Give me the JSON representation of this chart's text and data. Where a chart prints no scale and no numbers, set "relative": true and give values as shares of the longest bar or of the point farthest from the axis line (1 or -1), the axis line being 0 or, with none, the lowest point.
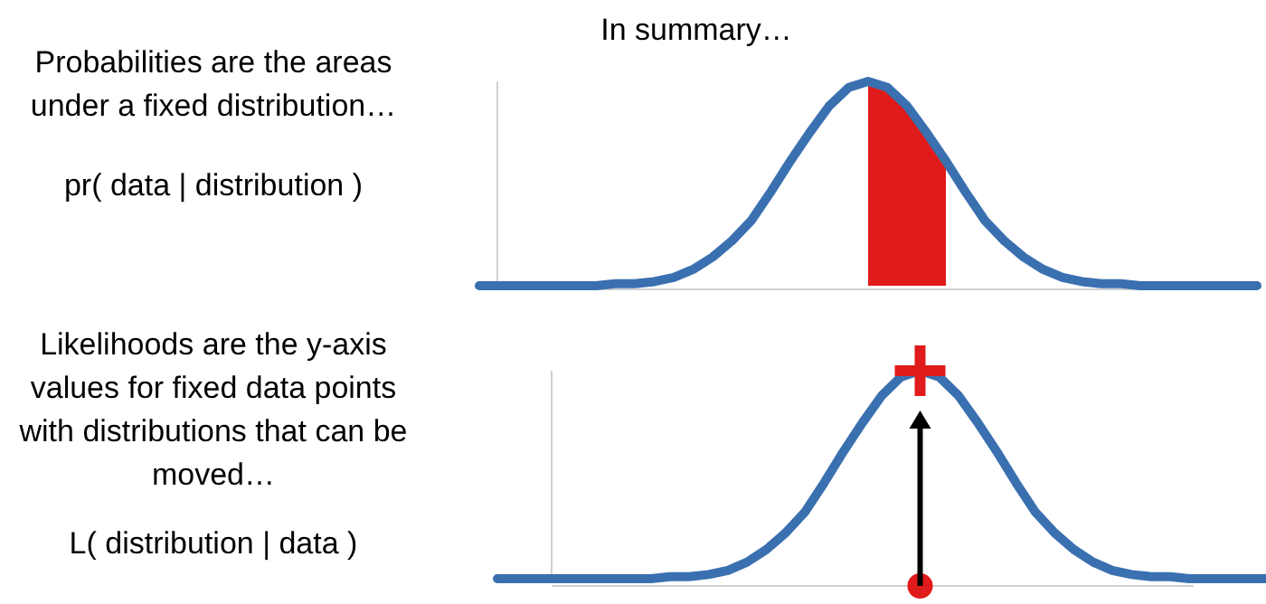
{
  "chart_data": [
    {
      "type": "line",
      "title": "In summary…",
      "relative": true,
      "annotations": [
        "Probabilities are the areas\nunder a fixed distribution…",
        "pr( data | distribution )"
      ],
      "categories": [
        null,
        null,
        null,
        null,
        null,
        null,
        null,
        null,
        null,
        null,
        null,
        null,
        null,
        null,
        null,
        null,
        null,
        null,
        null,
        null,
        null,
        null,
        null,
        null,
        null,
        null,
        null,
        null,
        null,
        null,
        null,
        null,
        null,
        null,
        null,
        null,
        null,
        null,
        null,
        null,
        null
      ],
      "series": [
        {
          "type": "area",
          "color": "#e01b1b",
          "values": [
            null,
            null,
            null,
            null,
            null,
            null,
            null,
            null,
            null,
            null,
            null,
            null,
            null,
            null,
            null,
            null,
            null,
            null,
            null,
            null,
            1,
            0.97,
            0.88,
            0.75,
            0.61,
            null,
            null,
            null,
            null,
            null,
            null,
            null,
            null,
            null,
            null,
            null,
            null,
            null,
            null,
            null,
            null
          ]
        },
        {
          "color": "#3a70b0",
          "values": [
            0,
            0,
            0,
            0,
            0,
            0,
            0,
            0.01,
            0.01,
            0.02,
            0.04,
            0.08,
            0.14,
            0.22,
            0.32,
            0.46,
            0.61,
            0.75,
            0.88,
            0.97,
            1,
            0.97,
            0.88,
            0.75,
            0.61,
            0.46,
            0.32,
            0.22,
            0.14,
            0.08,
            0.04,
            0.02,
            0.01,
            0.01,
            0,
            0,
            0,
            0,
            0,
            0,
            0
          ]
        }
      ]
    },
    {
      "type": "line",
      "relative": true,
      "annotations": [
        "Likelihoods are the y-axis\nvalues for fixed data points\nwith distributions that can be\nmoved…",
        "L( distribution | data )"
      ],
      "categories": [
        null,
        null,
        null,
        null,
        null,
        null,
        null,
        null,
        null,
        null,
        null,
        null,
        null,
        null,
        null,
        null,
        null,
        null,
        null,
        null,
        null,
        null,
        null,
        null,
        null,
        null,
        null,
        null,
        null,
        null,
        null,
        null,
        null,
        null,
        null,
        null,
        null,
        null,
        null,
        null,
        null
      ],
      "series": [
        {
          "color": "#3a70b0",
          "values": [
            0,
            0,
            0,
            0,
            0,
            0,
            0,
            0,
            0,
            0.01,
            0.01,
            0.02,
            0.04,
            0.08,
            0.14,
            0.22,
            0.32,
            0.46,
            0.61,
            0.75,
            0.88,
            0.97,
            1,
            0.97,
            0.88,
            0.75,
            0.61,
            0.46,
            0.32,
            0.22,
            0.14,
            0.08,
            0.04,
            0.02,
            0.01,
            0.01,
            0,
            0,
            0,
            0,
            0
          ]
        }
      ]
    }
  ]
}
